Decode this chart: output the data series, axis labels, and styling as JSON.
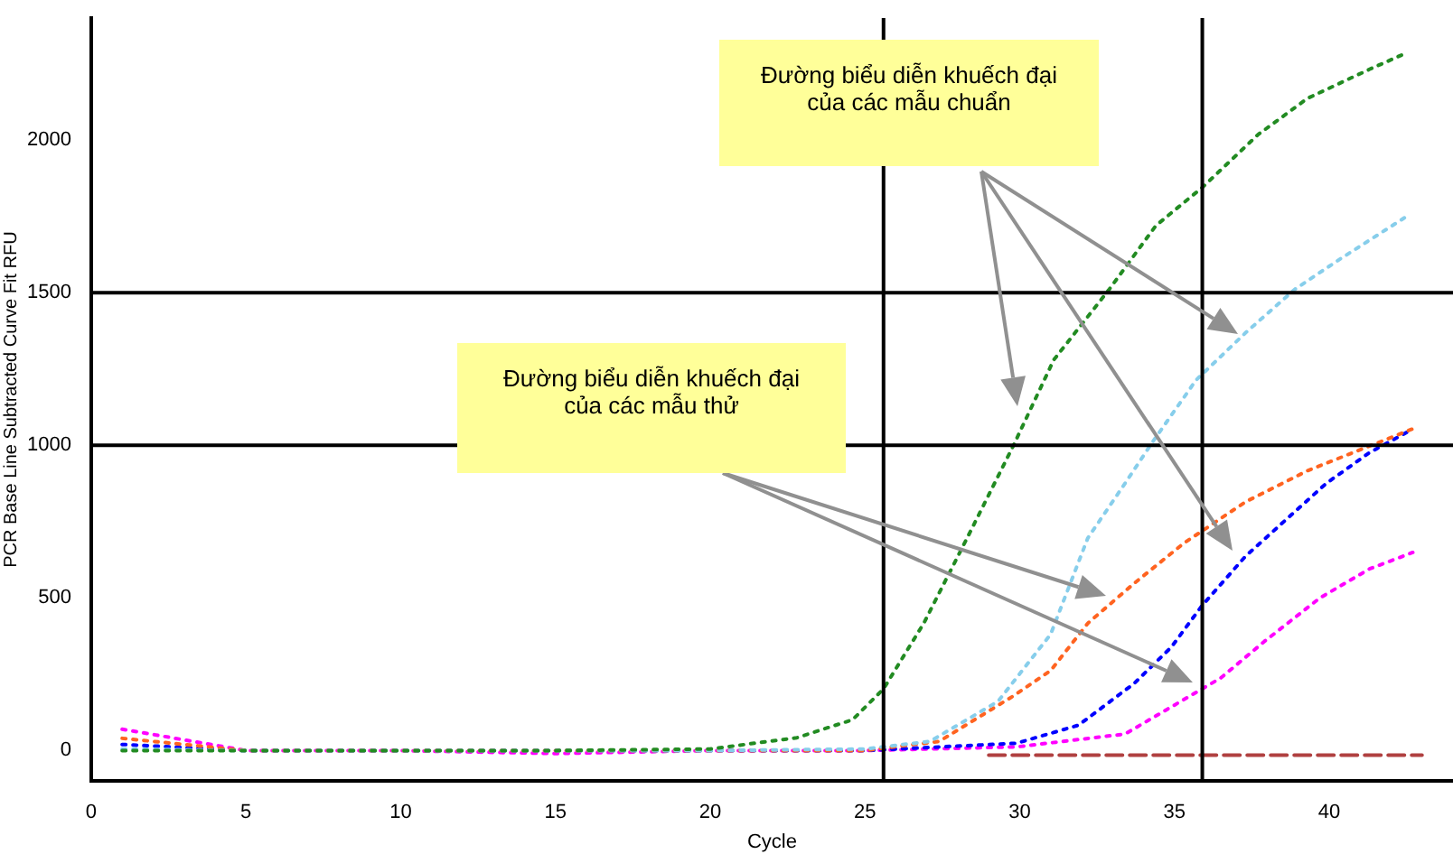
{
  "chart_data": {
    "type": "line",
    "xlabel": "Cycle",
    "ylabel": "PCR Base Line Subtracted Curve Fit RFU",
    "xlim": [
      0,
      44
    ],
    "xticks": [
      0,
      5,
      10,
      15,
      20,
      25,
      30,
      35,
      40
    ],
    "ylim": [
      -100,
      2400
    ],
    "yticks": [
      0,
      500,
      1000,
      1500,
      2000
    ],
    "grid": false,
    "legend": false,
    "marker": "none",
    "line_style": "dotted",
    "ref_lines": [
      {
        "axis": "y",
        "value": 1000,
        "color": "#000000",
        "line_style": "solid"
      },
      {
        "axis": "y",
        "value": 1500,
        "color": "#000000",
        "line_style": "solid"
      },
      {
        "axis": "x",
        "value": 25.6,
        "color": "#000000",
        "line_style": "solid"
      },
      {
        "axis": "x",
        "value": 35.9,
        "color": "#000000",
        "line_style": "solid"
      }
    ],
    "annotations": [
      "Đường biểu diễn khuếch đại của các mẫu chuẩn",
      "Đường biểu diễn khuếch đại của các mẫu thử"
    ],
    "series": [
      {
        "color": "#228b22",
        "x": [
          1,
          5,
          10,
          15,
          20,
          22.8,
          24.6,
          25.6,
          26.9,
          28.3,
          29.8,
          31.1,
          32.9,
          34.4,
          35.9,
          37.7,
          39.3,
          41.3,
          42.5
        ],
        "values": [
          0,
          0,
          0,
          0,
          5,
          42,
          101,
          202,
          417,
          696,
          1000,
          1280,
          1512,
          1720,
          1845,
          2018,
          2137,
          2232,
          2286
        ]
      },
      {
        "color": "#87ceeb",
        "x": [
          1,
          5,
          10,
          15,
          20,
          25,
          27.1,
          29.3,
          31,
          32.2,
          33.4,
          34.3,
          35.7,
          37.3,
          38.9,
          40.3,
          42.5
        ],
        "values": [
          5,
          0,
          0,
          0,
          0,
          5,
          30,
          161,
          381,
          696,
          875,
          1012,
          1214,
          1369,
          1512,
          1607,
          1750
        ]
      },
      {
        "color": "#ff6320",
        "x": [
          1,
          5,
          10,
          15,
          20,
          25,
          27.4,
          29.8,
          31,
          32.2,
          33.7,
          35.3,
          37.3,
          39.3,
          42.7
        ],
        "values": [
          40,
          0,
          0,
          0,
          0,
          0,
          30,
          179,
          262,
          417,
          548,
          679,
          815,
          917,
          1054
        ]
      },
      {
        "color": "#0000ff",
        "x": [
          1,
          5,
          10,
          15,
          20,
          25,
          29.9,
          31.9,
          33.7,
          34.9,
          35.9,
          37.3,
          39.9,
          41.3,
          42.5
        ],
        "values": [
          20,
          0,
          0,
          0,
          0,
          0,
          24,
          83,
          220,
          339,
          476,
          637,
          875,
          976,
          1042
        ]
      },
      {
        "color": "#ff00ff",
        "x": [
          1,
          5,
          10,
          15,
          20,
          25,
          29.9,
          33.4,
          34.9,
          36.5,
          37.9,
          39.7,
          41.3,
          42.7
        ],
        "values": [
          70,
          0,
          0,
          -10,
          0,
          0,
          12,
          54,
          143,
          238,
          357,
          500,
          595,
          649
        ]
      },
      {
        "color": "#b04040",
        "line_style": "dashed",
        "x": [
          29,
          43
        ],
        "values": [
          -15,
          -15
        ]
      }
    ]
  }
}
